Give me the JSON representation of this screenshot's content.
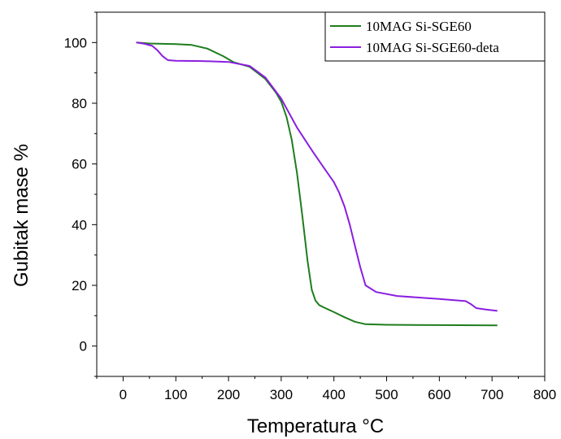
{
  "chart_data": {
    "type": "line",
    "xlabel": "Temperatura °C",
    "ylabel": "Gubitak mase %",
    "xlim": [
      -50,
      800
    ],
    "ylim": [
      -10,
      110
    ],
    "xticks": [
      0,
      100,
      200,
      300,
      400,
      500,
      600,
      700,
      800
    ],
    "yticks": [
      0,
      20,
      40,
      60,
      80,
      100
    ],
    "legend_position": "top-right",
    "grid": false,
    "series": [
      {
        "name": "10MAG Si-SGE60",
        "color": "#1e7d1e",
        "x": [
          25,
          50,
          100,
          130,
          160,
          190,
          210,
          240,
          270,
          290,
          300,
          310,
          320,
          330,
          340,
          350,
          358,
          365,
          372,
          380,
          400,
          420,
          440,
          460,
          500,
          600,
          710
        ],
        "y": [
          100,
          99.7,
          99.5,
          99.2,
          98,
          95.5,
          93.5,
          92,
          88,
          83.5,
          80.5,
          75.5,
          68,
          57,
          43,
          28,
          18.5,
          15,
          13.5,
          12.8,
          11.2,
          9.5,
          8,
          7.2,
          7,
          6.9,
          6.8
        ]
      },
      {
        "name": "10MAG Si-SGE60-deta",
        "color": "#8a1ee0",
        "x": [
          25,
          40,
          55,
          65,
          75,
          85,
          100,
          150,
          200,
          240,
          270,
          300,
          330,
          360,
          380,
          400,
          410,
          420,
          430,
          440,
          450,
          460,
          480,
          520,
          600,
          650,
          660,
          670,
          690,
          710
        ],
        "y": [
          100,
          99.6,
          98.9,
          97.5,
          95.5,
          94.2,
          94,
          93.9,
          93.6,
          92.3,
          88.5,
          81.5,
          72,
          64,
          59,
          54,
          50.5,
          46,
          40,
          33,
          26,
          20,
          17.8,
          16.5,
          15.5,
          14.8,
          13.8,
          12.5,
          12,
          11.6
        ]
      }
    ]
  }
}
